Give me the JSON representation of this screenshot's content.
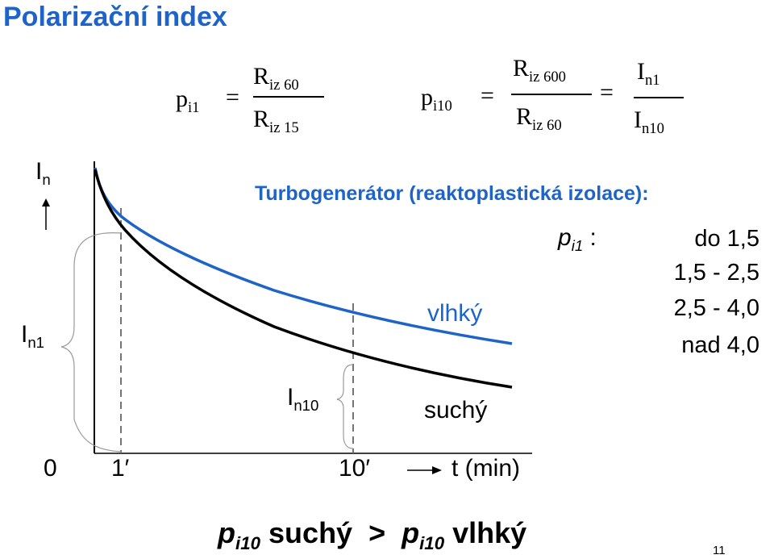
{
  "title": "Polarizační index",
  "formula1": {
    "lhs": "p",
    "lhs_sub": "i1",
    "eq": "=",
    "num": "R",
    "num_sub": "iz 60",
    "den": "R",
    "den_sub": "iz 15"
  },
  "formula2": {
    "lhs": "p",
    "lhs_sub": "i10",
    "eq1": "=",
    "num": "R",
    "num_sub": "iz 600",
    "den": "R",
    "den_sub": "iz 60",
    "eq2": "=",
    "num2": "I",
    "num2_sub": "n1",
    "den2": "I",
    "den2_sub": "n10"
  },
  "subtitle": "Turbogenerátor (reaktoplastická izolace):",
  "table": {
    "label": "p",
    "label_sub": "i1",
    "label_colon": " :",
    "values": [
      "do 1,5",
      "1,5 - 2,5",
      "2,5 - 4,0",
      "nad 4,0"
    ]
  },
  "chart_data": {
    "type": "line",
    "ylabel": "I",
    "ylabel_sub": "n",
    "x_ticks": [
      {
        "label": "0",
        "value": 0
      },
      {
        "label": "1′",
        "value": 1
      },
      {
        "label": "10′",
        "value": 10
      }
    ],
    "xlabel": "t (min)",
    "series": [
      {
        "name": "vlhký",
        "color": "#1e64c8"
      },
      {
        "name": "suchý",
        "color": "#000000"
      }
    ],
    "annotations": [
      {
        "label": "I",
        "sub": "n1"
      },
      {
        "label": "I",
        "sub": "n10"
      }
    ]
  },
  "bottom": {
    "p1": "p",
    "p1_sub": "i10",
    "w1": " suchý  >  ",
    "p2": "p",
    "p2_sub": "i10",
    "w2": " vlhký"
  },
  "page_number": "11"
}
